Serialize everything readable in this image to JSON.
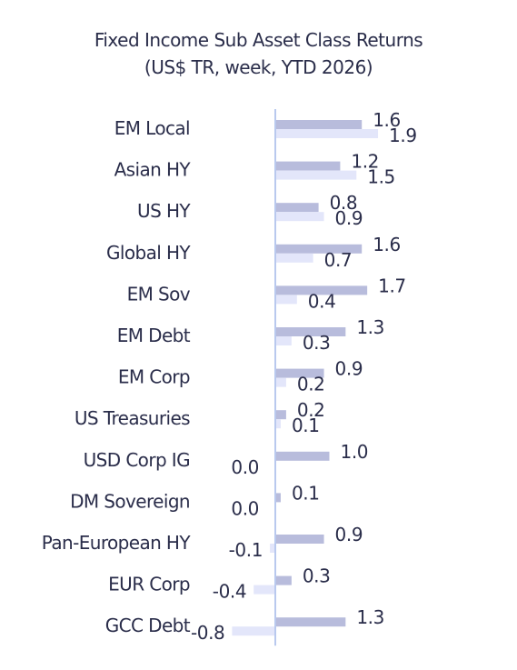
{
  "chart_data": {
    "type": "bar",
    "title": "Fixed Income Sub Asset Class Returns",
    "subtitle": "(US$ TR, week, YTD 2026)",
    "orientation": "horizontal",
    "categories": [
      "EM Local",
      "Asian HY",
      "US HY",
      "Global HY",
      "EM Sov",
      "EM Debt",
      "EM Corp",
      "US Treasuries",
      "USD Corp IG",
      "DM Sovereign",
      "Pan-European HY",
      "EUR Corp",
      "GCC Debt"
    ],
    "series": [
      {
        "values": [
          1.6,
          1.2,
          0.8,
          1.6,
          1.7,
          1.3,
          0.9,
          0.2,
          1.0,
          0.1,
          0.9,
          0.3,
          1.3
        ],
        "color": "#b8bcdc"
      },
      {
        "values": [
          1.9,
          1.5,
          0.9,
          0.7,
          0.4,
          0.3,
          0.2,
          0.1,
          0.0,
          0.0,
          -0.1,
          -0.4,
          -0.8
        ],
        "color": "#e3e6fa"
      }
    ],
    "value_labels": [
      [
        "1.6",
        "1.2",
        "0.8",
        "1.6",
        "1.7",
        "1.3",
        "0.9",
        "0.2",
        "1.0",
        "0.1",
        "0.9",
        "0.3",
        "1.3"
      ],
      [
        "1.9",
        "1.5",
        "0.9",
        "0.7",
        "0.4",
        "0.3",
        "0.2",
        "0.1",
        "0.0",
        "0.0",
        "-0.1",
        "-0.4",
        "-0.8"
      ]
    ],
    "xlim": [
      -0.8,
      1.9
    ],
    "grid": false,
    "legend": "none",
    "axis_color": "#b9c9ee"
  }
}
